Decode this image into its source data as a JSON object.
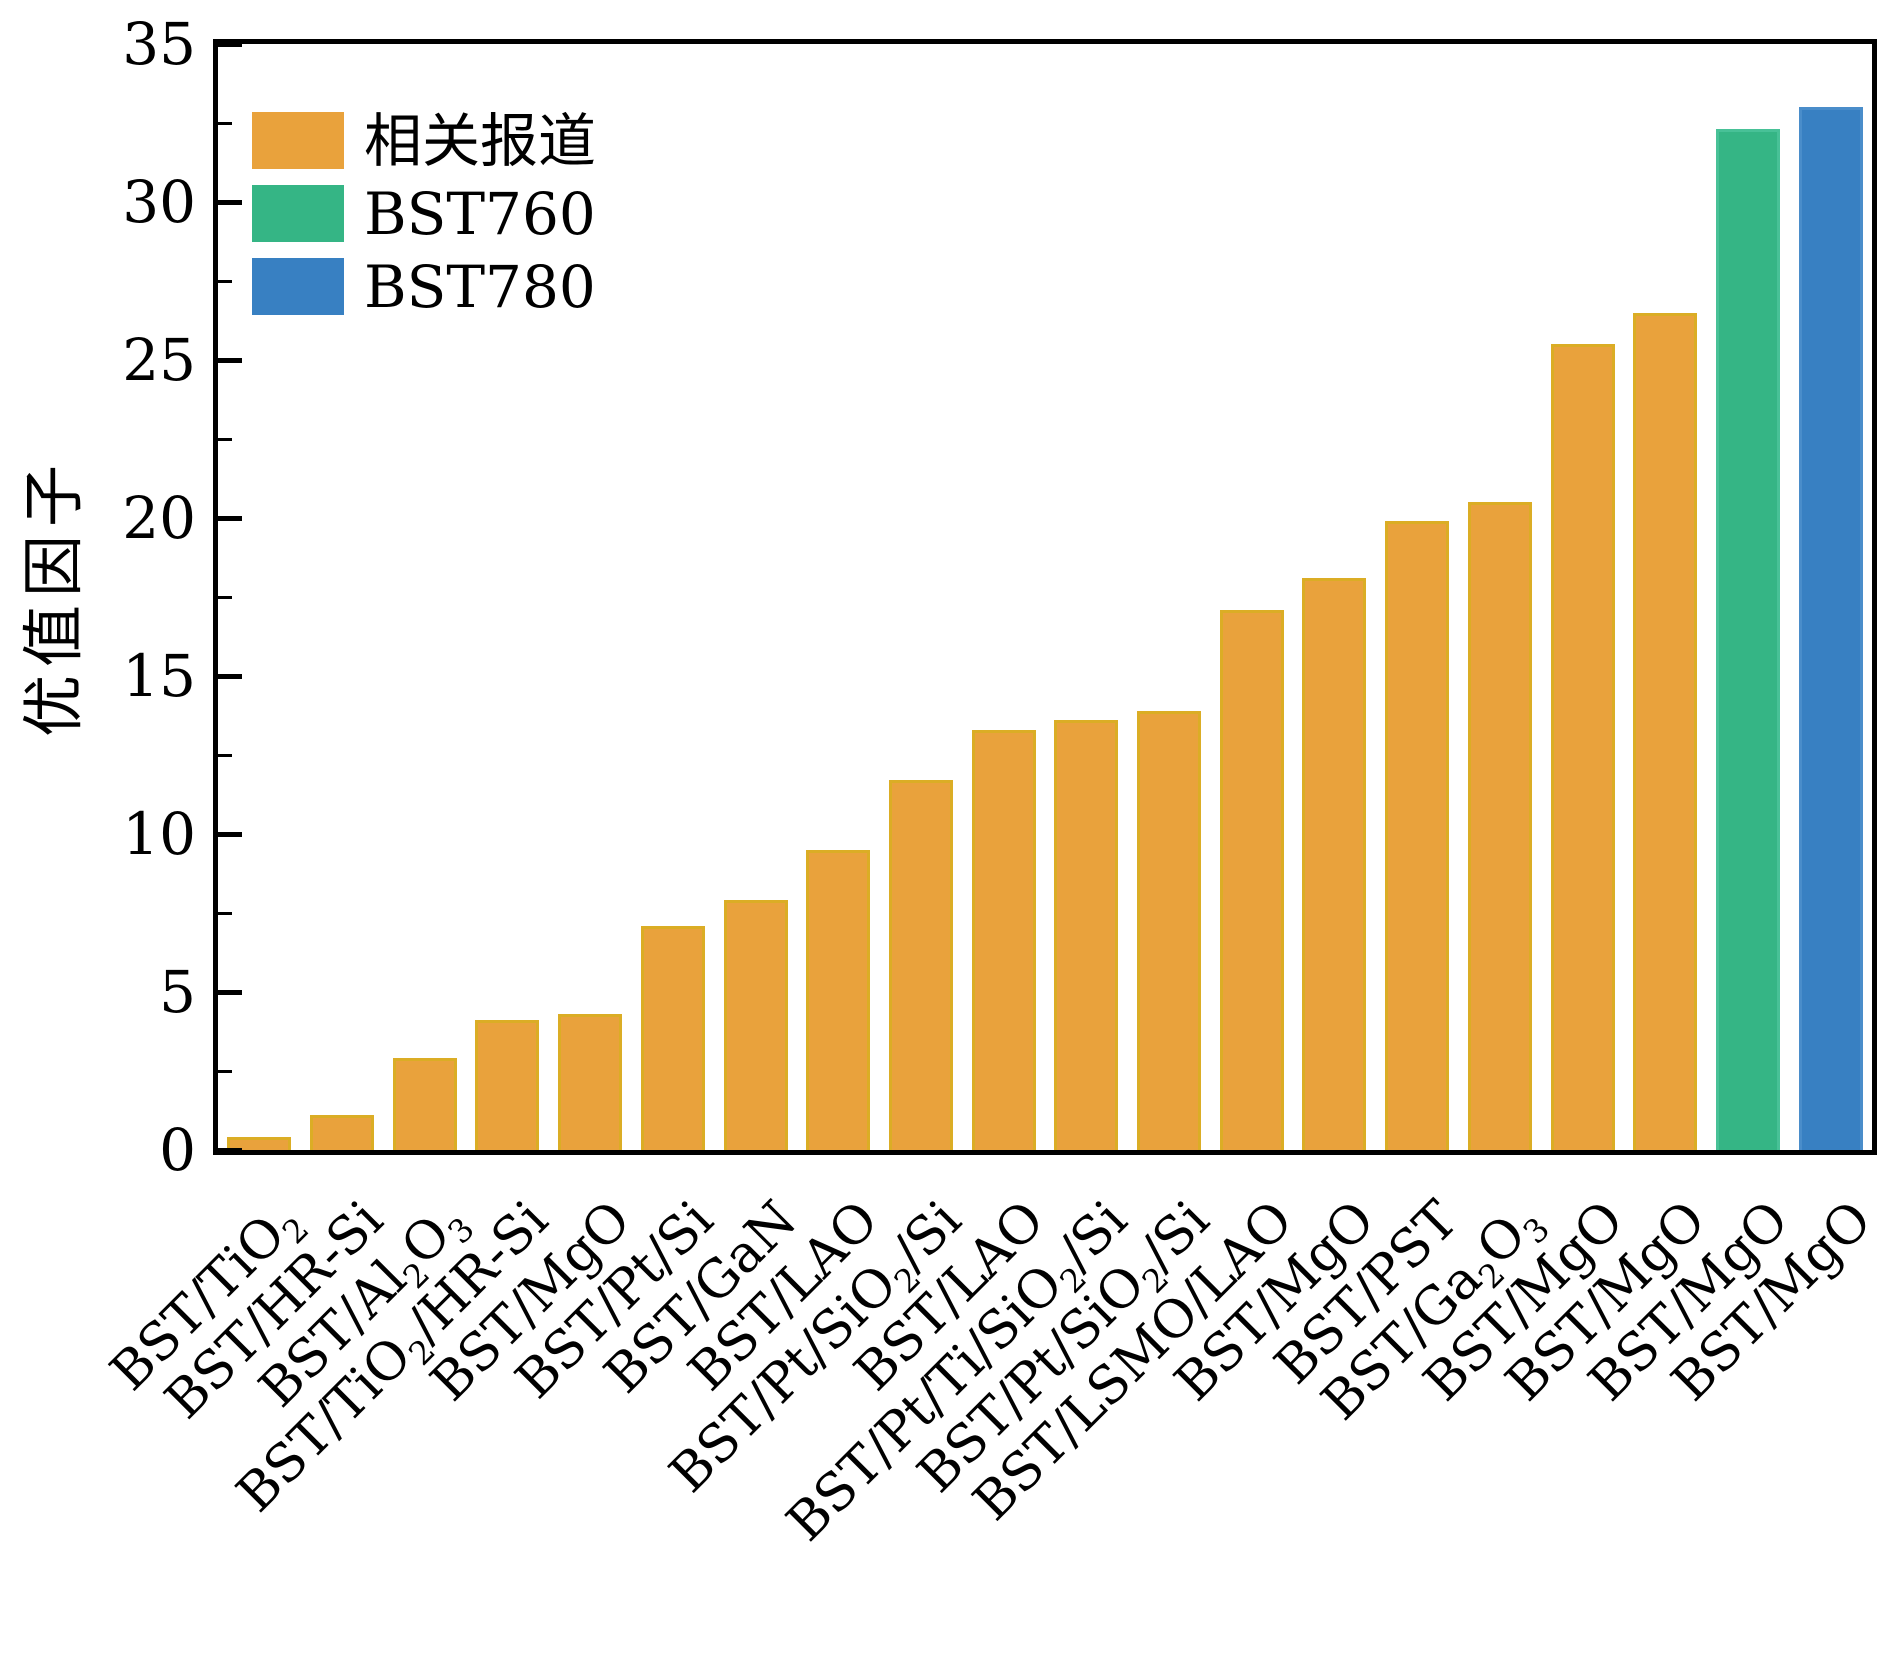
{
  "chart_data": {
    "type": "bar",
    "title": "",
    "xlabel": "",
    "ylabel": "优值因子",
    "ylim": [
      0,
      35
    ],
    "yticks": [
      0,
      5,
      10,
      15,
      20,
      25,
      30,
      35
    ],
    "ytick_minor": [
      2.5,
      7.5,
      12.5,
      17.5,
      22.5,
      27.5,
      32.5
    ],
    "grid": false,
    "legend_position": "upper-left",
    "categories": [
      "BST/TiO₂",
      "BST/HR-Si",
      "BST/Al₂O₃",
      "BST/TiO₂/HR-Si",
      "BST/MgO",
      "BST/Pt/Si",
      "BST/GaN",
      "BST/LAO",
      "BST/Pt/SiO₂/Si",
      "BST/LAO",
      "BST/Pt/Ti/SiO₂/Si",
      "BST/Pt/SiO₂/Si",
      "BST/LSMO/LAO",
      "BST/MgO",
      "BST/PST",
      "BST/Ga₂O₃",
      "BST/MgO",
      "BST/MgO",
      "BST/MgO",
      "BST/MgO"
    ],
    "values": [
      0.4,
      1.1,
      2.9,
      4.1,
      4.3,
      7.1,
      7.9,
      9.5,
      11.7,
      13.3,
      13.6,
      13.9,
      17.1,
      18.1,
      19.9,
      20.5,
      25.5,
      26.5,
      32.3,
      33.0
    ],
    "series_index": [
      0,
      0,
      0,
      0,
      0,
      0,
      0,
      0,
      0,
      0,
      0,
      0,
      0,
      0,
      0,
      0,
      0,
      0,
      1,
      2
    ],
    "series": [
      {
        "name": "相关报道",
        "color": "#E9A23C",
        "edge": "#DBAD25"
      },
      {
        "name": "BST760",
        "color": "#35B585",
        "edge": "#48C197"
      },
      {
        "name": "BST780",
        "color": "#3880C2",
        "edge": "#4A8DCA"
      }
    ],
    "legend": [
      {
        "label": "相关报道",
        "color": "#E9A23C"
      },
      {
        "label": "BST760",
        "color": "#35B585"
      },
      {
        "label": "BST780",
        "color": "#3880C2"
      }
    ],
    "axis_color": "#000000",
    "background_color": "#FFFFFF"
  }
}
